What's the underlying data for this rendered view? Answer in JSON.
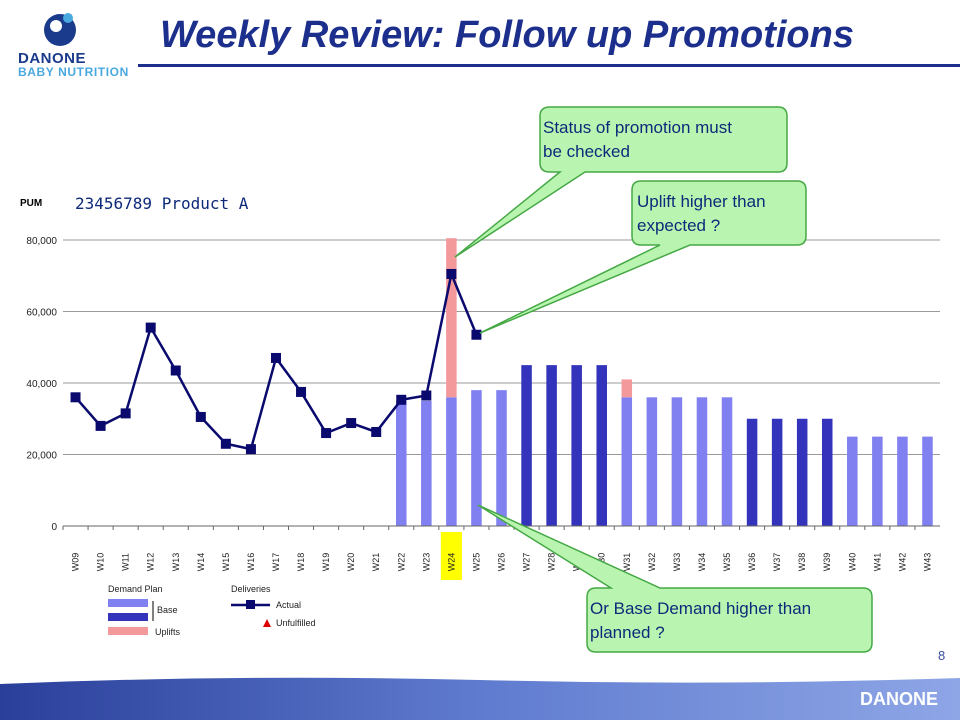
{
  "header": {
    "logo_brand": "DANONE",
    "logo_sub": "BABY NUTRITION",
    "title": "Weekly Review: Follow up Promotions"
  },
  "chart_data": {
    "type": "bar",
    "title": "23456789 Product A",
    "ylabel": "PUM",
    "ylim": [
      0,
      80000
    ],
    "yticks": [
      0,
      20000,
      40000,
      60000,
      80000
    ],
    "ytick_labels": [
      "0",
      "20,000",
      "40,000",
      "60,000",
      "80,000"
    ],
    "grid": true,
    "categories": [
      "W09",
      "W10",
      "W11",
      "W12",
      "W13",
      "W14",
      "W15",
      "W16",
      "W17",
      "W18",
      "W19",
      "W20",
      "W21",
      "W22",
      "W23",
      "W24",
      "W25",
      "W26",
      "W27",
      "W28",
      "W29",
      "W30",
      "W31",
      "W32",
      "W33",
      "W34",
      "W35",
      "W36",
      "W37",
      "W38",
      "W39",
      "W40",
      "W41",
      "W42",
      "W43"
    ],
    "highlight_category": "W24",
    "highlight_color": "#ffff00",
    "series": [
      {
        "name": "Base",
        "kind": "bar",
        "values": [
          null,
          null,
          null,
          null,
          null,
          null,
          null,
          null,
          null,
          null,
          null,
          null,
          null,
          35000,
          35000,
          36000,
          38000,
          38000,
          45000,
          45000,
          45000,
          45000,
          36000,
          36000,
          36000,
          36000,
          36000,
          30000,
          30000,
          30000,
          30000,
          25000,
          25000,
          25000,
          25000
        ],
        "colors_by_index": {
          "18": "#3333bb",
          "19": "#3333bb",
          "20": "#3333bb",
          "21": "#3333bb",
          "27": "#3333bb",
          "28": "#3333bb",
          "29": "#3333bb",
          "30": "#3333bb"
        },
        "color": "#8080f0"
      },
      {
        "name": "Uplifts",
        "kind": "bar_stack",
        "values": [
          null,
          null,
          null,
          null,
          null,
          null,
          null,
          null,
          null,
          null,
          null,
          null,
          null,
          null,
          null,
          44500,
          null,
          null,
          null,
          null,
          null,
          null,
          5000,
          null,
          null,
          null,
          null,
          null,
          null,
          null,
          null,
          null,
          null,
          null,
          null
        ],
        "color": "#f4999b"
      },
      {
        "name": "Actual",
        "kind": "line",
        "values": [
          36000,
          28000,
          31500,
          55500,
          43500,
          30500,
          23000,
          21500,
          47000,
          37500,
          26000,
          28800,
          26300,
          35300,
          36500,
          70500,
          53500,
          null,
          null,
          null,
          null,
          null,
          null,
          null,
          null,
          null,
          null,
          null,
          null,
          null,
          null,
          null,
          null,
          null,
          null
        ],
        "color": "#0a0a6e"
      }
    ],
    "legend": {
      "placement": "bottom-left",
      "demand_plan_title": "Demand Plan",
      "deliveries_title": "Deliveries",
      "base_label": "Base",
      "uplifts_label": "Uplifts",
      "actual_label": "Actual",
      "unfulfilled_label": "Unfulfilled",
      "unfulfilled_color": "#dd0000"
    },
    "callouts": [
      {
        "text_line1": "Status of promotion must",
        "text_line2": "be checked",
        "points_to": "W24 uplift"
      },
      {
        "text_line1": "Uplift higher than",
        "text_line2": "expected ?",
        "points_to": "W25 actual"
      },
      {
        "text_line1": "Or Base Demand higher than",
        "text_line2": "planned ?",
        "points_to": "W25 base"
      }
    ]
  },
  "footer": {
    "page_number": "8",
    "brand": "DANONE"
  },
  "colors": {
    "brand_blue": "#1c2f8c",
    "callout_fill": "#b9f5b1",
    "callout_stroke": "#45a845"
  }
}
